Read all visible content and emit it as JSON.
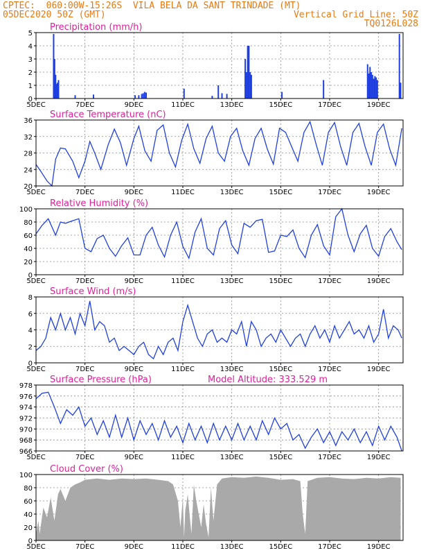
{
  "header": {
    "line1_left": "CPTEC:  060:00W-15:26S  VILA BELA DA SANT TRINDADE (MT)",
    "line2_left": "05DEC2020 50Z (GMT)",
    "line2_right": "Vertical Grid Line: 50Z",
    "line3_right": "TQ0126L028"
  },
  "colors": {
    "header": "#e87a14",
    "title": "#e0209a",
    "series": "#1f3fe0",
    "cloud": "#a9a9a9"
  },
  "x_axis": {
    "labels": [
      "5DEC",
      "7DEC",
      "9DEC",
      "11DEC",
      "13DEC",
      "15DEC",
      "17DEC",
      "19DEC"
    ],
    "days": [
      5,
      7,
      9,
      11,
      13,
      15,
      17,
      19
    ],
    "range_days": [
      5,
      20
    ]
  },
  "chart_data": [
    {
      "type": "bar",
      "title": "Precipitation (mm/h)",
      "ylim": [
        0,
        5
      ],
      "yticks": [
        0,
        1,
        2,
        3,
        4,
        5
      ],
      "series": [
        {
          "x": [
            5.72,
            5.76,
            5.8,
            5.84,
            5.88,
            5.92,
            6.6,
            7.35,
            9.05,
            9.2,
            9.32,
            9.38,
            9.44,
            9.5,
            11.05,
            12.2,
            12.45,
            12.6,
            12.8,
            13.55,
            13.6,
            13.65,
            13.7,
            13.75,
            13.8,
            15.05,
            16.75,
            18.55,
            18.6,
            18.65,
            18.7,
            18.75,
            18.8,
            18.85,
            18.9,
            18.95,
            19.85,
            19.9
          ],
          "values": [
            4.9,
            3.0,
            1.8,
            1.1,
            1.2,
            1.4,
            0.25,
            0.3,
            0.25,
            0.25,
            0.35,
            0.4,
            0.5,
            0.45,
            0.75,
            0.2,
            1.0,
            0.4,
            0.35,
            3.0,
            2.0,
            4.0,
            4.0,
            2.0,
            1.8,
            0.5,
            1.4,
            2.6,
            1.9,
            2.4,
            2.0,
            1.8,
            1.5,
            1.7,
            1.6,
            1.4,
            4.9,
            1.2
          ]
        }
      ]
    },
    {
      "type": "line",
      "title": "Surface Temperature (nC)",
      "ylim": [
        20,
        36
      ],
      "yticks": [
        20,
        24,
        28,
        32,
        36
      ],
      "series": [
        {
          "x": [
            5.0,
            5.2,
            5.45,
            5.65,
            5.8,
            6.0,
            6.2,
            6.5,
            6.75,
            7.0,
            7.2,
            7.4,
            7.65,
            7.95,
            8.2,
            8.45,
            8.7,
            9.0,
            9.2,
            9.45,
            9.7,
            9.95,
            10.2,
            10.45,
            10.7,
            10.95,
            11.2,
            11.45,
            11.7,
            11.95,
            12.2,
            12.45,
            12.7,
            12.95,
            13.2,
            13.45,
            13.7,
            13.95,
            14.2,
            14.45,
            14.7,
            14.95,
            15.2,
            15.45,
            15.7,
            15.95,
            16.2,
            16.45,
            16.7,
            16.95,
            17.2,
            17.45,
            17.7,
            17.95,
            18.2,
            18.45,
            18.7,
            18.95,
            19.2,
            19.45,
            19.7,
            19.95
          ],
          "values": [
            25.2,
            23.5,
            21.2,
            20.0,
            26.5,
            29.2,
            29.0,
            26.0,
            22.0,
            26.0,
            30.8,
            28.0,
            24.0,
            30.0,
            33.8,
            30.5,
            25.0,
            31.5,
            34.5,
            28.5,
            26.0,
            33.5,
            34.8,
            28.0,
            24.6,
            31.0,
            35.0,
            29.0,
            25.5,
            31.5,
            34.5,
            28.0,
            26.0,
            32.0,
            34.0,
            28.5,
            25.0,
            31.5,
            34.0,
            29.0,
            25.3,
            34.0,
            33.0,
            29.5,
            26.0,
            33.0,
            35.6,
            30.0,
            25.0,
            33.0,
            35.4,
            29.5,
            25.0,
            33.0,
            35.2,
            29.5,
            25.0,
            33.0,
            35.0,
            29.0,
            25.0,
            34.0
          ]
        }
      ]
    },
    {
      "type": "line",
      "title": "Relative Humidity (%)",
      "ylim": [
        0,
        100
      ],
      "yticks": [
        0,
        20,
        40,
        60,
        80,
        100
      ],
      "series": [
        {
          "x": [
            5.0,
            5.25,
            5.5,
            5.8,
            6.0,
            6.2,
            6.5,
            6.75,
            7.0,
            7.25,
            7.5,
            7.75,
            8.0,
            8.25,
            8.5,
            8.75,
            9.0,
            9.25,
            9.5,
            9.75,
            10.0,
            10.25,
            10.5,
            10.75,
            11.0,
            11.25,
            11.5,
            11.75,
            12.0,
            12.25,
            12.5,
            12.75,
            13.0,
            13.25,
            13.5,
            13.75,
            14.0,
            14.25,
            14.5,
            14.75,
            15.0,
            15.25,
            15.5,
            15.75,
            16.0,
            16.25,
            16.5,
            16.75,
            17.0,
            17.25,
            17.5,
            17.75,
            18.0,
            18.25,
            18.5,
            18.75,
            19.0,
            19.25,
            19.5,
            19.75,
            19.95
          ],
          "values": [
            62,
            75,
            85,
            60,
            80,
            78,
            82,
            85,
            40,
            35,
            55,
            60,
            40,
            28,
            44,
            56,
            30,
            30,
            60,
            72,
            45,
            27,
            60,
            80,
            43,
            25,
            65,
            85,
            40,
            30,
            70,
            82,
            45,
            32,
            78,
            72,
            82,
            84,
            34,
            36,
            60,
            58,
            68,
            40,
            26,
            60,
            76,
            44,
            30,
            88,
            100,
            60,
            35,
            62,
            75,
            40,
            28,
            58,
            70,
            50,
            38
          ]
        }
      ]
    },
    {
      "type": "line",
      "title": "Surface Wind (m/s)",
      "ylim": [
        0,
        8
      ],
      "yticks": [
        0,
        2,
        4,
        6,
        8
      ],
      "series": [
        {
          "x": [
            5.0,
            5.2,
            5.4,
            5.6,
            5.8,
            6.0,
            6.2,
            6.4,
            6.6,
            6.8,
            7.0,
            7.2,
            7.4,
            7.6,
            7.8,
            8.0,
            8.2,
            8.4,
            8.6,
            8.8,
            9.0,
            9.2,
            9.4,
            9.6,
            9.8,
            10.0,
            10.2,
            10.4,
            10.6,
            10.8,
            11.0,
            11.2,
            11.4,
            11.6,
            11.8,
            12.0,
            12.2,
            12.4,
            12.6,
            12.8,
            13.0,
            13.2,
            13.4,
            13.6,
            13.8,
            14.0,
            14.2,
            14.4,
            14.6,
            14.8,
            15.0,
            15.2,
            15.4,
            15.6,
            15.8,
            16.0,
            16.2,
            16.4,
            16.6,
            16.8,
            17.0,
            17.2,
            17.4,
            17.6,
            17.8,
            18.0,
            18.2,
            18.4,
            18.6,
            18.8,
            19.0,
            19.2,
            19.4,
            19.6,
            19.8,
            19.95
          ],
          "values": [
            1.5,
            2.0,
            3.0,
            5.5,
            4.0,
            6.0,
            4.0,
            5.5,
            3.5,
            6.0,
            4.5,
            7.5,
            4.0,
            5.0,
            4.5,
            2.5,
            3.0,
            1.5,
            2.0,
            1.5,
            1.0,
            2.0,
            2.5,
            1.0,
            0.5,
            2.0,
            1.0,
            2.5,
            3.0,
            1.5,
            5.0,
            7.0,
            5.0,
            3.0,
            2.0,
            3.5,
            4.0,
            2.5,
            3.0,
            2.5,
            4.0,
            3.5,
            5.0,
            2.0,
            5.0,
            4.0,
            2.0,
            3.0,
            3.5,
            2.5,
            4.0,
            3.0,
            2.0,
            3.0,
            3.5,
            2.0,
            3.5,
            4.5,
            3.0,
            4.0,
            2.5,
            4.5,
            3.0,
            4.0,
            5.0,
            3.5,
            4.0,
            3.0,
            4.5,
            2.5,
            3.5,
            6.5,
            3.0,
            4.5,
            4.0,
            3.0
          ]
        }
      ]
    },
    {
      "type": "line",
      "title": "Surface Pressure (hPa)",
      "annotation": "Model Altitude: 333.529 m",
      "ylim": [
        966,
        978
      ],
      "yticks": [
        966,
        968,
        970,
        972,
        974,
        976,
        978
      ],
      "series": [
        {
          "x": [
            5.0,
            5.25,
            5.5,
            5.75,
            6.0,
            6.25,
            6.5,
            6.75,
            7.0,
            7.25,
            7.5,
            7.75,
            8.0,
            8.25,
            8.5,
            8.75,
            9.0,
            9.25,
            9.5,
            9.75,
            10.0,
            10.25,
            10.5,
            10.75,
            11.0,
            11.25,
            11.5,
            11.75,
            12.0,
            12.25,
            12.5,
            12.75,
            13.0,
            13.25,
            13.5,
            13.75,
            14.0,
            14.25,
            14.5,
            14.75,
            15.0,
            15.25,
            15.5,
            15.75,
            16.0,
            16.25,
            16.5,
            16.75,
            17.0,
            17.25,
            17.5,
            17.75,
            18.0,
            18.25,
            18.5,
            18.75,
            19.0,
            19.25,
            19.5,
            19.75,
            19.95
          ],
          "values": [
            975.5,
            976.5,
            976.7,
            974.0,
            971.0,
            973.5,
            972.5,
            974.0,
            970.5,
            972.0,
            969.0,
            971.5,
            968.5,
            972.5,
            968.5,
            972.0,
            968.0,
            971.5,
            969.0,
            971.0,
            968.0,
            971.5,
            968.5,
            970.5,
            967.5,
            971.0,
            968.0,
            970.5,
            967.5,
            971.0,
            968.0,
            970.5,
            968.0,
            971.0,
            968.0,
            970.5,
            968.0,
            971.5,
            969.0,
            972.0,
            970.0,
            971.0,
            968.0,
            969.0,
            966.5,
            968.5,
            970.0,
            967.5,
            969.5,
            967.0,
            969.5,
            968.0,
            970.0,
            967.5,
            969.5,
            967.0,
            970.5,
            968.0,
            970.5,
            968.5,
            966.0
          ]
        }
      ]
    },
    {
      "type": "area",
      "title": "Cloud Cover (%)",
      "ylim": [
        0,
        100
      ],
      "yticks": [
        0,
        20,
        40,
        60,
        80,
        100
      ],
      "series": [
        {
          "x": [
            5.0,
            5.1,
            5.15,
            5.3,
            5.45,
            5.6,
            5.75,
            5.9,
            6.0,
            6.2,
            6.4,
            6.6,
            6.8,
            7.0,
            7.5,
            8.0,
            8.5,
            9.0,
            9.5,
            10.0,
            10.4,
            10.6,
            10.8,
            10.9,
            11.0,
            11.05,
            11.1,
            11.2,
            11.3,
            11.35,
            11.45,
            11.55,
            11.65,
            11.75,
            11.85,
            11.95,
            12.05,
            12.15,
            12.25,
            12.4,
            12.6,
            13.0,
            13.5,
            14.0,
            14.5,
            15.0,
            15.5,
            15.8,
            15.9,
            16.0,
            16.1,
            16.5,
            17.0,
            17.5,
            18.0,
            18.5,
            19.0,
            19.5,
            19.9
          ],
          "values": [
            10,
            30,
            10,
            50,
            35,
            65,
            30,
            70,
            78,
            60,
            80,
            85,
            88,
            92,
            94,
            92,
            94,
            93,
            94,
            92,
            90,
            85,
            60,
            20,
            65,
            5,
            45,
            70,
            30,
            10,
            85,
            60,
            40,
            20,
            55,
            25,
            5,
            80,
            30,
            85,
            94,
            96,
            95,
            97,
            95,
            92,
            93,
            90,
            40,
            10,
            90,
            95,
            96,
            94,
            93,
            95,
            94,
            96,
            95
          ]
        }
      ]
    }
  ]
}
